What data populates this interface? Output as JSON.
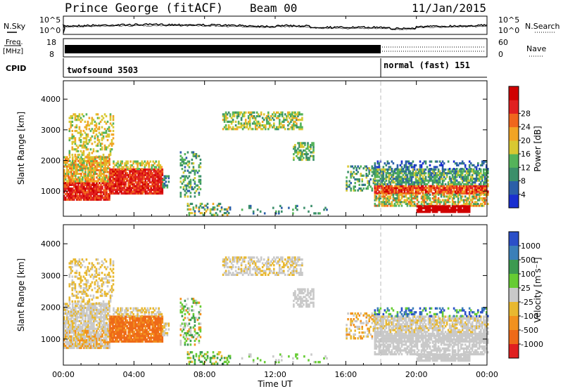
{
  "header": {
    "station": "Prince George (fitACF)",
    "beam": "Beam 00",
    "date": "11/Jan/2015"
  },
  "strip_labels": {
    "n_sky": "N.Sky",
    "n_search": "N.Search",
    "freq": "Freq.",
    "freq_unit": "[MHz]",
    "nave": "Nave",
    "cpid": "CPID"
  },
  "strip_axes": {
    "noise_ticks": [
      "10^5",
      "10^0"
    ],
    "freq_ticks": [
      "18",
      "8"
    ],
    "nave_ticks": [
      "60",
      "0"
    ]
  },
  "cpid_modes": [
    {
      "label": "twofsound 3503",
      "start_hour": 0,
      "end_hour": 18
    },
    {
      "label": "normal (fast) 151",
      "start_hour": 18,
      "end_hour": 24
    }
  ],
  "chart_data": [
    {
      "type": "heatmap",
      "name": "power",
      "ylabel": "Slant Range [km]",
      "xlabel": "",
      "ylim": [
        180,
        4600
      ],
      "yticks": [
        1000,
        2000,
        3000,
        4000
      ],
      "xlim": [
        0,
        24
      ],
      "colorbar": {
        "label": "Power [dB]",
        "ticks": [
          "4",
          "8",
          "12",
          "16",
          "20",
          "24",
          "28"
        ]
      }
    },
    {
      "type": "heatmap",
      "name": "velocity",
      "ylabel": "Slant Range [km]",
      "xlabel": "Time UT",
      "ylim": [
        180,
        4600
      ],
      "yticks": [
        1000,
        2000,
        3000,
        4000
      ],
      "xlim": [
        0,
        24
      ],
      "xticks": [
        "00:00",
        "04:00",
        "08:00",
        "12:00",
        "16:00",
        "20:00",
        "00:00"
      ],
      "colorbar": {
        "label": "Velocity [m s⁻¹]",
        "ticks": [
          "1000",
          "500",
          "100",
          "25",
          "-25",
          "-100",
          "-500",
          "-1000"
        ]
      }
    }
  ],
  "colors": {
    "power_scale": [
      "#1a2fd0",
      "#2c5fa8",
      "#3b8f6a",
      "#55b35a",
      "#d8c832",
      "#f2a424",
      "#f0661c",
      "#e02020",
      "#d00000"
    ],
    "velocity_scale": [
      "#2b4fc8",
      "#3b7fb8",
      "#3c9a50",
      "#66cc33",
      "#c9c9c9",
      "#e8b830",
      "#f2911e",
      "#ee6a18",
      "#e02020"
    ],
    "marker_line": "#bbbbbb"
  }
}
